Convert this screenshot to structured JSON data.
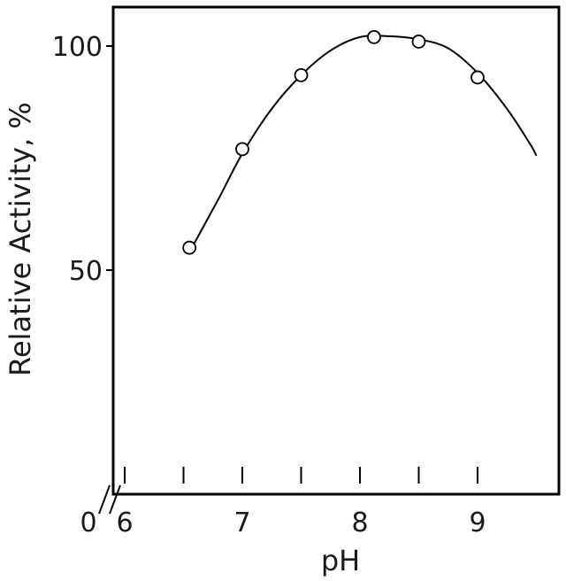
{
  "chart_data": {
    "type": "scatter",
    "xlabel": "pH",
    "ylabel": "Relative Activity, %",
    "xlim": [
      6,
      9.7
    ],
    "ylim": [
      0,
      103
    ],
    "x_ticks": [
      6,
      6.5,
      7,
      7.5,
      8,
      8.5,
      9
    ],
    "x_tick_labels": [
      {
        "value": 6,
        "label": "6"
      },
      {
        "value": 7,
        "label": "7"
      },
      {
        "value": 8,
        "label": "8"
      },
      {
        "value": 9,
        "label": "9"
      }
    ],
    "y_ticks": [
      {
        "value": 50,
        "label": "50"
      },
      {
        "value": 100,
        "label": "100"
      }
    ],
    "origin_label": "0",
    "axis_break": true,
    "grid": false,
    "series": [
      {
        "marker": "open-circle",
        "points": [
          {
            "x": 6.55,
            "y": 55
          },
          {
            "x": 7.0,
            "y": 77
          },
          {
            "x": 7.5,
            "y": 93.5
          },
          {
            "x": 8.12,
            "y": 102
          },
          {
            "x": 8.5,
            "y": 101
          },
          {
            "x": 9.0,
            "y": 93
          }
        ]
      }
    ],
    "fit_curve": [
      {
        "x": 6.55,
        "y": 54
      },
      {
        "x": 6.8,
        "y": 66
      },
      {
        "x": 7.0,
        "y": 76
      },
      {
        "x": 7.25,
        "y": 86
      },
      {
        "x": 7.5,
        "y": 93.5
      },
      {
        "x": 7.75,
        "y": 99
      },
      {
        "x": 8.0,
        "y": 102
      },
      {
        "x": 8.25,
        "y": 102.2
      },
      {
        "x": 8.5,
        "y": 101.5
      },
      {
        "x": 8.75,
        "y": 99.5
      },
      {
        "x": 9.0,
        "y": 94
      },
      {
        "x": 9.25,
        "y": 86
      },
      {
        "x": 9.45,
        "y": 78
      },
      {
        "x": 9.5,
        "y": 75.5
      }
    ]
  }
}
